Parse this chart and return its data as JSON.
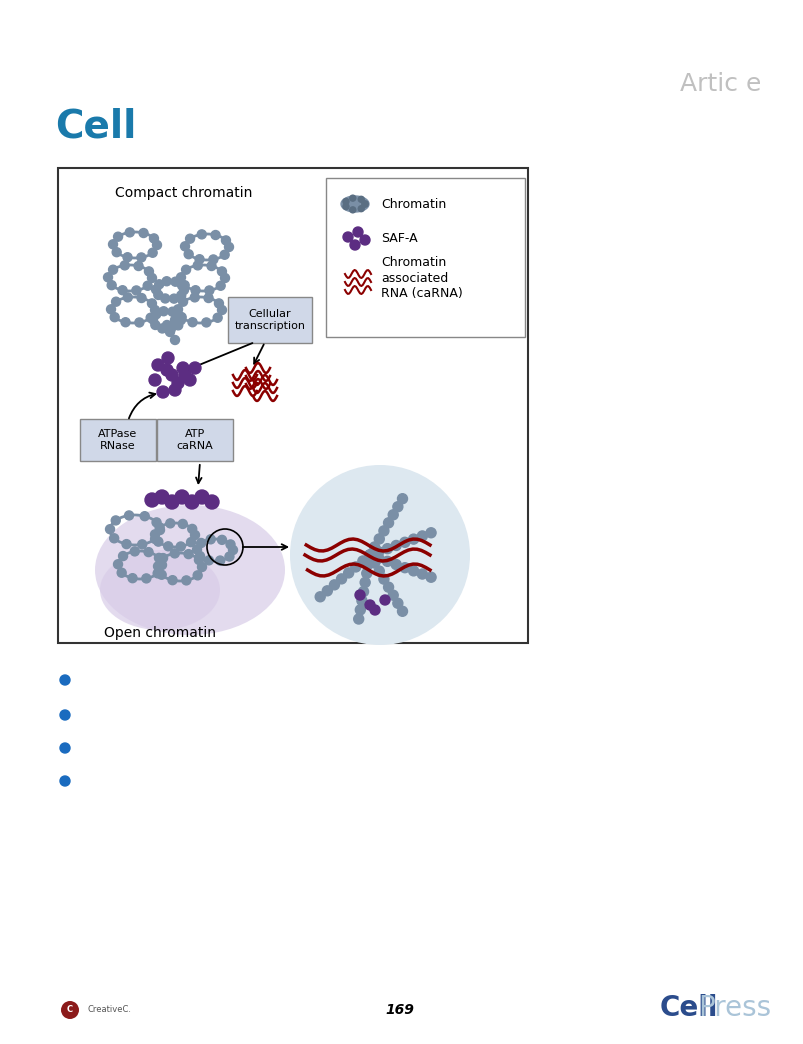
{
  "bg_color": "#ffffff",
  "cell_text_color": "#1a7aab",
  "article_text_color": "#c0c0c0",
  "box_border_color": "#333333",
  "chromatin_color": "#7a8fa6",
  "safa_color": "#5c2d82",
  "rna_color1": "#8b0000",
  "rna_color2": "#cc2200",
  "open_chromatin_fill": "#d8cce8",
  "zoom_circle_fill": "#dde8f0",
  "label_box_color": "#d0d8e8",
  "bullet_color": "#1a6bbf",
  "cellpress_cell_color": "#2b4c8c",
  "cellpress_press_color": "#aac4d8",
  "page_number": "169",
  "title_cell": "Cell",
  "title_article": "Artic e",
  "legend_chromatin": "Chromatin",
  "legend_safa": "SAF-A",
  "legend_rna": "Chromatin\nassociated\nRNA (caRNA)",
  "label_compact": "Compact chromatin",
  "label_open": "Open chromatin",
  "label_cellular": "Cellular\ntranscription",
  "label_atpase": "ATPase\nRNase",
  "label_atp": "ATP\ncaRNA"
}
